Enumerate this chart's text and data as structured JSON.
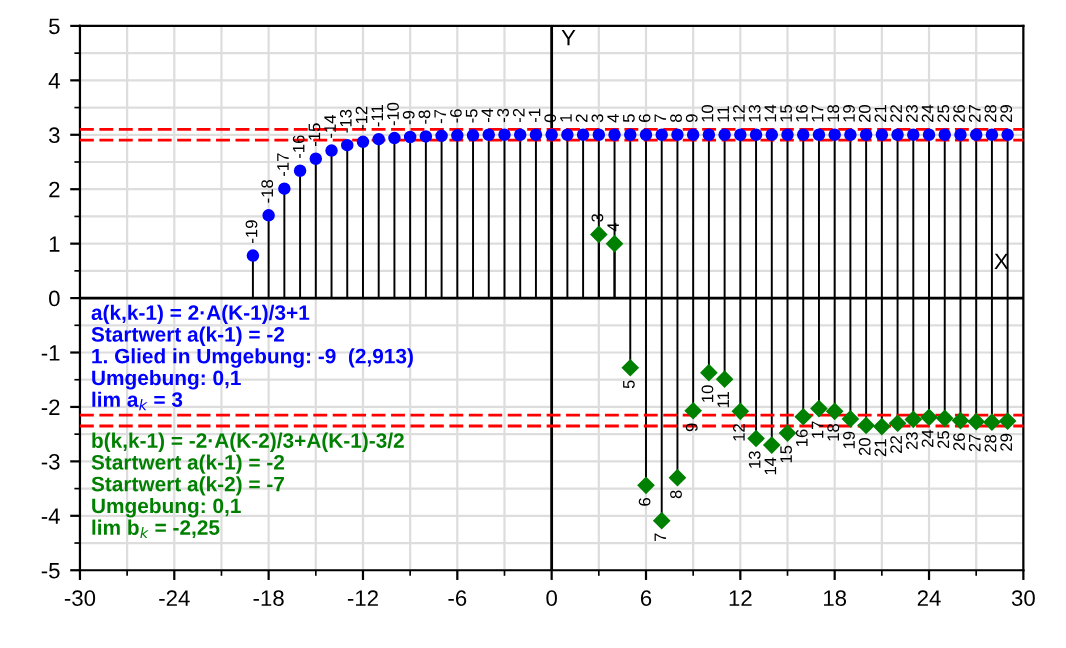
{
  "chart_data": {
    "type": "lollipop",
    "xlabel": "X",
    "ylabel": "Y",
    "xlim": [
      -30,
      30
    ],
    "xticks": [
      -30,
      -24,
      -18,
      -12,
      -6,
      0,
      6,
      12,
      18,
      24,
      30
    ],
    "ylim": [
      -5,
      5
    ],
    "yticks": [
      -5,
      -4,
      -3,
      -2,
      -1,
      0,
      1,
      2,
      3,
      4,
      5
    ],
    "grid": true,
    "series": [
      {
        "color": "#0000ff",
        "marker": "circle",
        "x": [
          -19,
          -18,
          -17,
          -16,
          -15,
          -14,
          -13,
          -12,
          -11,
          -10,
          -9,
          -8,
          -7,
          -6,
          -5,
          -4,
          -3,
          -2,
          -1,
          0,
          1,
          2,
          3,
          4,
          5,
          6,
          7,
          8,
          9,
          10,
          11,
          12,
          13,
          14,
          15,
          16,
          17,
          18,
          19,
          20,
          21,
          22,
          23,
          24,
          25,
          26,
          27,
          28,
          29
        ],
        "values": [
          0.78,
          1.52,
          2.01,
          2.34,
          2.56,
          2.71,
          2.81,
          2.87,
          2.92,
          2.94,
          2.96,
          2.97,
          2.98,
          2.99,
          2.99,
          3,
          3,
          3,
          3,
          3,
          3,
          3,
          3,
          3,
          3,
          3,
          3,
          3,
          3,
          3,
          3,
          3,
          3,
          3,
          3,
          3,
          3,
          3,
          3,
          3,
          3,
          3,
          3,
          3,
          3,
          3,
          3,
          3,
          3
        ]
      },
      {
        "color": "#008000",
        "marker": "diamond",
        "x": [
          3,
          4,
          5,
          6,
          7,
          8,
          9,
          10,
          11,
          12,
          13,
          14,
          15,
          16,
          17,
          18,
          19,
          20,
          21,
          22,
          23,
          24,
          25,
          26,
          27,
          28,
          29
        ],
        "values": [
          1.17,
          1.0,
          -1.28,
          -3.44,
          -4.09,
          -3.3,
          -2.07,
          -1.37,
          -1.49,
          -2.08,
          -2.58,
          -2.7,
          -2.48,
          -2.18,
          -2.03,
          -2.08,
          -2.22,
          -2.34,
          -2.36,
          -2.3,
          -2.23,
          -2.19,
          -2.21,
          -2.25,
          -2.27,
          -2.28,
          -2.26
        ]
      }
    ],
    "ref_lines": [
      {
        "axis": "y",
        "value": 3.1,
        "color": "#ff0000",
        "line_style": "dashed"
      },
      {
        "axis": "y",
        "value": 2.9,
        "color": "#ff0000",
        "line_style": "dashed"
      },
      {
        "axis": "y",
        "value": -2.15,
        "color": "#ff0000",
        "line_style": "dashed"
      },
      {
        "axis": "y",
        "value": -2.35,
        "color": "#ff0000",
        "line_style": "dashed"
      }
    ],
    "annotations": [
      "a(k,k-1) = 2·A(K-1)/3+1",
      "Startwert a(k-1) = -2",
      "1. Glied in Umgebung: -9  (2,913)",
      "Umgebung: 0,1",
      "lim a$_{k}$ = 3",
      "b(k,k-1) = -2·A(K-2)/3+A(K-1)-3/2",
      "Startwert a(k-1) = -2",
      "Startwert a(k-2) = -7",
      "Umgebung: 0,1",
      "lim b$_{k}$ = -2,25",
      {
        "text": "-19",
        "x": -19,
        "y": 0.78
      },
      {
        "text": "-18",
        "x": -18,
        "y": 1.52
      },
      {
        "text": "-17",
        "x": -17,
        "y": 2.01
      },
      {
        "text": "-16",
        "x": -16,
        "y": 2.34
      },
      {
        "text": "-15",
        "x": -15,
        "y": 2.56
      },
      {
        "text": "-14",
        "x": -14,
        "y": 2.71
      },
      {
        "text": "-13",
        "x": -13,
        "y": 2.81
      },
      {
        "text": "-12",
        "x": -12,
        "y": 2.87
      },
      {
        "text": "-11",
        "x": -11,
        "y": 2.92
      },
      {
        "text": "-10",
        "x": -10,
        "y": 2.94
      },
      {
        "text": "-9",
        "x": -9,
        "y": 2.96
      },
      {
        "text": "-8",
        "x": -8,
        "y": 2.97
      },
      {
        "text": "-7",
        "x": -7,
        "y": 2.98
      },
      {
        "text": "-6",
        "x": -6,
        "y": 2.99
      },
      {
        "text": "-5",
        "x": -5,
        "y": 2.99
      },
      {
        "text": "-4",
        "x": -4,
        "y": 3
      },
      {
        "text": "-3",
        "x": -3,
        "y": 3
      },
      {
        "text": "-2",
        "x": -2,
        "y": 3
      },
      {
        "text": "-1",
        "x": -1,
        "y": 3
      },
      {
        "text": "0",
        "x": 0,
        "y": 3
      },
      {
        "text": "1",
        "x": 1,
        "y": 3
      },
      {
        "text": "2",
        "x": 2,
        "y": 3
      },
      {
        "text": "3",
        "x": 3,
        "y": 3
      },
      {
        "text": "4",
        "x": 4,
        "y": 3
      },
      {
        "text": "5",
        "x": 5,
        "y": 3
      },
      {
        "text": "6",
        "x": 6,
        "y": 3
      },
      {
        "text": "7",
        "x": 7,
        "y": 3
      },
      {
        "text": "8",
        "x": 8,
        "y": 3
      },
      {
        "text": "9",
        "x": 9,
        "y": 3
      },
      {
        "text": "10",
        "x": 10,
        "y": 3
      },
      {
        "text": "11",
        "x": 11,
        "y": 3
      },
      {
        "text": "12",
        "x": 12,
        "y": 3
      },
      {
        "text": "13",
        "x": 13,
        "y": 3
      },
      {
        "text": "14",
        "x": 14,
        "y": 3
      },
      {
        "text": "15",
        "x": 15,
        "y": 3
      },
      {
        "text": "16",
        "x": 16,
        "y": 3
      },
      {
        "text": "17",
        "x": 17,
        "y": 3
      },
      {
        "text": "18",
        "x": 18,
        "y": 3
      },
      {
        "text": "19",
        "x": 19,
        "y": 3
      },
      {
        "text": "20",
        "x": 20,
        "y": 3
      },
      {
        "text": "21",
        "x": 21,
        "y": 3
      },
      {
        "text": "22",
        "x": 22,
        "y": 3
      },
      {
        "text": "23",
        "x": 23,
        "y": 3
      },
      {
        "text": "24",
        "x": 24,
        "y": 3
      },
      {
        "text": "25",
        "x": 25,
        "y": 3
      },
      {
        "text": "26",
        "x": 26,
        "y": 3
      },
      {
        "text": "27",
        "x": 27,
        "y": 3
      },
      {
        "text": "28",
        "x": 28,
        "y": 3
      },
      {
        "text": "29",
        "x": 29,
        "y": 3
      },
      {
        "text": "3",
        "x": 3,
        "y": 1.17
      },
      {
        "text": "4",
        "x": 4,
        "y": 1.0
      },
      {
        "text": "5",
        "x": 5,
        "y": -1.28
      },
      {
        "text": "6",
        "x": 6,
        "y": -3.44
      },
      {
        "text": "7",
        "x": 7,
        "y": -4.09
      },
      {
        "text": "8",
        "x": 8,
        "y": -3.3
      },
      {
        "text": "9",
        "x": 9,
        "y": -2.07
      },
      {
        "text": "10",
        "x": 10,
        "y": -1.37
      },
      {
        "text": "11",
        "x": 11,
        "y": -1.49
      },
      {
        "text": "12",
        "x": 12,
        "y": -2.08
      },
      {
        "text": "13",
        "x": 13,
        "y": -2.58
      },
      {
        "text": "14",
        "x": 14,
        "y": -2.7
      },
      {
        "text": "15",
        "x": 15,
        "y": -2.48
      },
      {
        "text": "16",
        "x": 16,
        "y": -2.18
      },
      {
        "text": "17",
        "x": 17,
        "y": -2.03
      },
      {
        "text": "18",
        "x": 18,
        "y": -2.08
      },
      {
        "text": "19",
        "x": 19,
        "y": -2.22
      },
      {
        "text": "20",
        "x": 20,
        "y": -2.34
      },
      {
        "text": "21",
        "x": 21,
        "y": -2.36
      },
      {
        "text": "22",
        "x": 22,
        "y": -2.3
      },
      {
        "text": "23",
        "x": 23,
        "y": -2.23
      },
      {
        "text": "24",
        "x": 24,
        "y": -2.19
      },
      {
        "text": "25",
        "x": 25,
        "y": -2.21
      },
      {
        "text": "26",
        "x": 26,
        "y": -2.25
      },
      {
        "text": "27",
        "x": 27,
        "y": -2.27
      },
      {
        "text": "28",
        "x": 28,
        "y": -2.28
      },
      {
        "text": "29",
        "x": 29,
        "y": -2.26
      }
    ]
  }
}
